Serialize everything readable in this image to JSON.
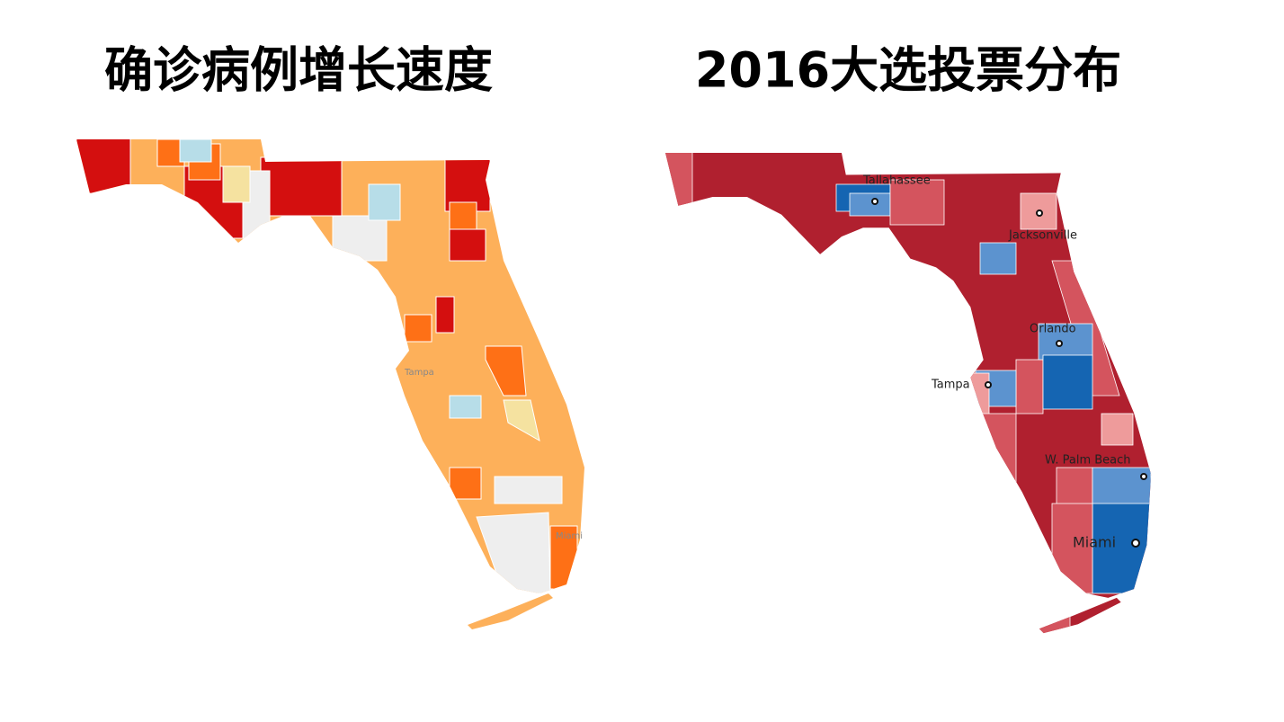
{
  "left_map": {
    "title": "确诊病例增长速度",
    "labels": [
      "Tampa",
      "Miami"
    ]
  },
  "right_map": {
    "title": "2016大选投票分布",
    "labels": [
      "Tallahassee",
      "Jacksonville",
      "Orlando",
      "Tampa",
      "W. Palm Beach",
      "Miami"
    ]
  }
}
